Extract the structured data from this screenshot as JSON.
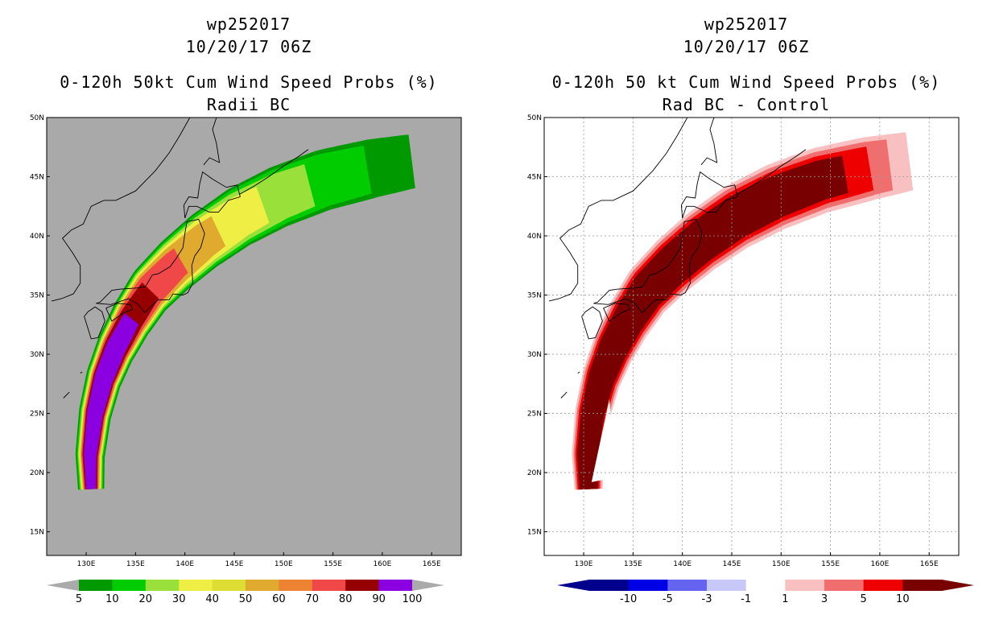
{
  "chart_data": [
    {
      "type": "heatmap",
      "title_line1": "wp252017",
      "title_line2": "10/20/17 06Z",
      "title_line3": "0-120h 50kt Cum Wind Speed Probs (%)",
      "title_line4": "Radii BC",
      "x_ticks": [
        "130E",
        "135E",
        "140E",
        "145E",
        "150E",
        "155E",
        "160E",
        "165E"
      ],
      "y_ticks": [
        "50N",
        "45N",
        "40N",
        "35N",
        "30N",
        "25N",
        "20N",
        "15N"
      ],
      "xlim": [
        126,
        168
      ],
      "ylim": [
        13,
        50
      ],
      "grid": false,
      "background_color": "#a9a9a9",
      "colorbar_labels": [
        "5",
        "10",
        "20",
        "30",
        "40",
        "50",
        "60",
        "70",
        "80",
        "90",
        "100"
      ],
      "colorbar_colors": [
        "#009900",
        "#00cc00",
        "#99e03a",
        "#eeee44",
        "#dddd33",
        "#e0aa2e",
        "#ec8232",
        "#f04848",
        "#960000",
        "#8b00e0"
      ],
      "track_levels": [
        {
          "level": "5",
          "color": "#009900"
        },
        {
          "level": "10",
          "color": "#00cc00"
        },
        {
          "level": "20",
          "color": "#99e03a"
        },
        {
          "level": "30",
          "color": "#eeee44"
        },
        {
          "level": "50",
          "color": "#e0aa2e"
        },
        {
          "level": "70",
          "color": "#f04848"
        },
        {
          "level": "90",
          "color": "#960000"
        },
        {
          "level": "100",
          "color": "#8b00e0"
        }
      ]
    },
    {
      "type": "heatmap",
      "title_line1": "wp252017",
      "title_line2": "10/20/17 06Z",
      "title_line3": "0-120h 50 kt Cum Wind Speed Probs (%)",
      "title_line4": "Rad BC - Control",
      "x_ticks": [
        "130E",
        "135E",
        "140E",
        "145E",
        "150E",
        "155E",
        "160E",
        "165E"
      ],
      "y_ticks": [
        "50N",
        "45N",
        "40N",
        "35N",
        "30N",
        "25N",
        "20N",
        "15N"
      ],
      "xlim": [
        126,
        168
      ],
      "ylim": [
        13,
        50
      ],
      "grid": true,
      "background_color": "#ffffff",
      "colorbar_labels": [
        "-10",
        "-5",
        "-3",
        "-1",
        "1",
        "3",
        "5",
        "10"
      ],
      "colorbar_colors": [
        "#00008c",
        "#0000e6",
        "#6464f0",
        "#c8c8f8",
        "#ffffff",
        "#f8c0c0",
        "#f06e6e",
        "#ee0000",
        "#780000"
      ],
      "track_levels": [
        {
          "level": "1",
          "color": "#f8c0c0"
        },
        {
          "level": "3",
          "color": "#f06e6e"
        },
        {
          "level": "5",
          "color": "#ee0000"
        },
        {
          "level": "10",
          "color": "#780000"
        }
      ]
    }
  ]
}
